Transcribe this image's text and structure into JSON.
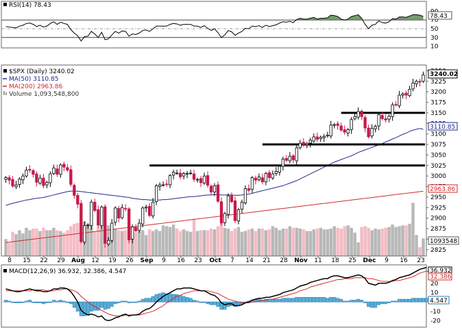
{
  "rsi": {
    "legend": "RSI(14) 78.43",
    "value_label": "78.43",
    "ticks": [
      "90",
      "70",
      "50",
      "30",
      "10"
    ],
    "tick_values": [
      90,
      70,
      50,
      30,
      10
    ],
    "levels": [
      70,
      50,
      30
    ],
    "ylim": [
      0,
      100
    ]
  },
  "price": {
    "legend": "$SPX (Daily) 3240.02",
    "legend_ma50": "MA(50) 3110.85",
    "legend_ma200": "MA(200) 2963.86",
    "legend_volume": "Volume 1,093,548,800",
    "last_label": "3240.02",
    "ma50_label": "3110.85",
    "ma200_label": "2963.86",
    "volume_label": "1093548",
    "ticks": [
      "3250",
      "3225",
      "3200",
      "3175",
      "3150",
      "3125",
      "3100",
      "3075",
      "3050",
      "3025",
      "3000",
      "2975",
      "2950",
      "2925",
      "2900",
      "2875",
      "2850",
      "2825"
    ],
    "tick_values": [
      3250,
      3225,
      3200,
      3175,
      3150,
      3125,
      3100,
      3075,
      3050,
      3025,
      3000,
      2975,
      2950,
      2925,
      2900,
      2875,
      2850,
      2825
    ],
    "ylim": [
      2810,
      3262
    ],
    "colors": {
      "up": "#000000",
      "down": "#c8184a",
      "ma50": "#1f2a8c",
      "ma200": "#d22727",
      "vol_up": "#b8b8b8",
      "vol_down": "#f4bcc4",
      "rsi_fill": "#5d8a55"
    },
    "resistance_levels": [
      3150,
      3075,
      3025
    ]
  },
  "xaxis": {
    "labels": [
      "8",
      "15",
      "22",
      "29",
      "Aug",
      "12",
      "19",
      "26",
      "Sep",
      "9",
      "16",
      "23",
      "Oct",
      "7",
      "14",
      "21",
      "28",
      "Nov",
      "11",
      "18",
      "25",
      "Dec",
      "9",
      "16",
      "23"
    ],
    "bold": [
      "Aug",
      "Sep",
      "Oct",
      "Nov",
      "Dec"
    ]
  },
  "macd": {
    "legend": "MACD(12,26,9) 36.932, 32.386, 4.547",
    "macd_label": "36.932",
    "signal_label": "32.386",
    "hist_label": "4.547",
    "ticks": [
      "30",
      "20",
      "10",
      "0",
      "-10",
      "-20"
    ],
    "tick_values": [
      30,
      20,
      10,
      0,
      -10,
      -20
    ],
    "ylim": [
      -27,
      39
    ]
  },
  "chart_data": {
    "type": "candlestick",
    "title": "$SPX (Daily) 3240.02",
    "series_names": [
      "$SPX",
      "MA(50)",
      "MA(200)",
      "Volume",
      "RSI(14)",
      "MACD(12,26,9)"
    ],
    "dates": [
      "Jul 3",
      "Jul 5",
      "Jul 8",
      "Jul 9",
      "Jul 10",
      "Jul 11",
      "Jul 12",
      "Jul 15",
      "Jul 16",
      "Jul 17",
      "Jul 18",
      "Jul 19",
      "Jul 22",
      "Jul 23",
      "Jul 24",
      "Jul 25",
      "Jul 26",
      "Jul 29",
      "Jul 30",
      "Jul 31",
      "Aug 1",
      "Aug 2",
      "Aug 5",
      "Aug 6",
      "Aug 7",
      "Aug 8",
      "Aug 9",
      "Aug 12",
      "Aug 13",
      "Aug 14",
      "Aug 15",
      "Aug 16",
      "Aug 19",
      "Aug 20",
      "Aug 21",
      "Aug 22",
      "Aug 23",
      "Aug 26",
      "Aug 27",
      "Aug 28",
      "Aug 29",
      "Aug 30",
      "Sep 3",
      "Sep 4",
      "Sep 5",
      "Sep 6",
      "Sep 9",
      "Sep 10",
      "Sep 11",
      "Sep 12",
      "Sep 13",
      "Sep 16",
      "Sep 17",
      "Sep 18",
      "Sep 19",
      "Sep 20",
      "Sep 23",
      "Sep 24",
      "Sep 25",
      "Sep 26",
      "Sep 27",
      "Sep 30",
      "Oct 1",
      "Oct 2",
      "Oct 3",
      "Oct 4",
      "Oct 7",
      "Oct 8",
      "Oct 9",
      "Oct 10",
      "Oct 11",
      "Oct 14",
      "Oct 15",
      "Oct 16",
      "Oct 17",
      "Oct 18",
      "Oct 21",
      "Oct 22",
      "Oct 23",
      "Oct 24",
      "Oct 25",
      "Oct 28",
      "Oct 29",
      "Oct 30",
      "Oct 31",
      "Nov 1",
      "Nov 4",
      "Nov 5",
      "Nov 6",
      "Nov 7",
      "Nov 8",
      "Nov 11",
      "Nov 12",
      "Nov 13",
      "Nov 14",
      "Nov 15",
      "Nov 18",
      "Nov 19",
      "Nov 20",
      "Nov 21",
      "Nov 22",
      "Nov 25",
      "Nov 26",
      "Nov 27",
      "Nov 29",
      "Dec 2",
      "Dec 3",
      "Dec 4",
      "Dec 5",
      "Dec 6",
      "Dec 9",
      "Dec 10",
      "Dec 11",
      "Dec 12",
      "Dec 13",
      "Dec 16",
      "Dec 17",
      "Dec 18",
      "Dec 19",
      "Dec 20",
      "Dec 23",
      "Dec 24",
      "Dec 26"
    ],
    "close": [
      2996,
      2990,
      2976,
      2979,
      2993,
      3000,
      3014,
      3014,
      3004,
      2985,
      2995,
      2977,
      2985,
      3005,
      3019,
      3004,
      3026,
      3021,
      3014,
      2980,
      2954,
      2933,
      2844,
      2882,
      2884,
      2938,
      2918,
      2883,
      2926,
      2840,
      2847,
      2888,
      2924,
      2900,
      2925,
      2922,
      2848,
      2879,
      2870,
      2888,
      2924,
      2926,
      2906,
      2938,
      2977,
      2979,
      2979,
      2980,
      3001,
      3009,
      3007,
      2998,
      3006,
      3006,
      3007,
      2992,
      2992,
      2984,
      3000,
      2978,
      2962,
      2977,
      2940,
      2888,
      2911,
      2953,
      2939,
      2894,
      2920,
      2938,
      2970,
      2966,
      2996,
      2990,
      2998,
      2986,
      3006,
      2996,
      3005,
      3011,
      3023,
      3040,
      3037,
      3047,
      3038,
      3067,
      3078,
      3075,
      3077,
      3085,
      3093,
      3087,
      3092,
      3094,
      3097,
      3121,
      3122,
      3120,
      3109,
      3104,
      3110,
      3134,
      3141,
      3153,
      3141,
      3114,
      3093,
      3113,
      3118,
      3146,
      3136,
      3133,
      3142,
      3169,
      3169,
      3192,
      3195,
      3192,
      3206,
      3221,
      3225,
      3223,
      3240
    ],
    "ohlc_note": "close values in index points; candles drawn from open = previous close",
    "ma50": [
      2930,
      2933,
      2935,
      2937,
      2939,
      2941,
      2943,
      2944,
      2946,
      2947,
      2948,
      2949,
      2951,
      2953,
      2955,
      2957,
      2959,
      2961,
      2963,
      2964,
      2964,
      2964,
      2963,
      2962,
      2961,
      2960,
      2959,
      2958,
      2957,
      2956,
      2955,
      2954,
      2953,
      2952,
      2951,
      2950,
      2949,
      2947,
      2946,
      2945,
      2944,
      2944,
      2943,
      2943,
      2943,
      2943,
      2944,
      2944,
      2945,
      2946,
      2947,
      2948,
      2949,
      2950,
      2951,
      2951,
      2952,
      2953,
      2954,
      2955,
      2955,
      2956,
      2956,
      2955,
      2955,
      2955,
      2955,
      2954,
      2954,
      2955,
      2956,
      2957,
      2959,
      2961,
      2963,
      2965,
      2967,
      2969,
      2971,
      2973,
      2975,
      2977,
      2980,
      2983,
      2986,
      2989,
      2993,
      2997,
      3001,
      3005,
      3009,
      3013,
      3017,
      3021,
      3025,
      3029,
      3033,
      3036,
      3039,
      3042,
      3045,
      3048,
      3052,
      3056,
      3059,
      3062,
      3065,
      3068,
      3071,
      3074,
      3077,
      3081,
      3084,
      3088,
      3091,
      3095,
      3099,
      3102,
      3106,
      3109,
      3111,
      3113,
      3111
    ],
    "ma200_start": 2842,
    "ma200_end": 2963.86,
    "volume_millions": [
      1050,
      820,
      1500,
      1350,
      1600,
      1400,
      1750,
      1600,
      1700,
      1700,
      1550,
      1750,
      1600,
      1600,
      1750,
      1600,
      1550,
      1450,
      1600,
      1850,
      2000,
      2050,
      2600,
      2150,
      1900,
      1900,
      1500,
      1800,
      2050,
      2400,
      1900,
      1700,
      1700,
      1600,
      1550,
      1600,
      2100,
      1650,
      1450,
      1550,
      1600,
      1300,
      1650,
      1550,
      1650,
      1550,
      1900,
      1850,
      1800,
      1950,
      1700,
      1550,
      1650,
      1550,
      1500,
      2300,
      1550,
      1600,
      1600,
      1600,
      1700,
      1650,
      1850,
      2000,
      1750,
      1700,
      1550,
      1700,
      1800,
      1500,
      1550,
      1650,
      1700,
      1550,
      1700,
      1700,
      1600,
      1650,
      1850,
      1750,
      1600,
      1700,
      1700,
      1850,
      1750,
      1750,
      1700,
      1650,
      1550,
      1550,
      1650,
      1700,
      1750,
      1650,
      1650,
      1700,
      1850,
      1750,
      1700,
      1850,
      1900,
      1750,
      1450,
      850,
      1800,
      1850,
      1750,
      1600,
      1700,
      1650,
      1700,
      1750,
      1800,
      1950,
      1800,
      1850,
      1900,
      1900,
      2000,
      3300,
      1300,
      550,
      1093
    ],
    "rsi": [
      55,
      54,
      53,
      52,
      56,
      58,
      62,
      63,
      60,
      55,
      58,
      54,
      56,
      62,
      66,
      60,
      65,
      62,
      60,
      48,
      40,
      34,
      22,
      32,
      33,
      44,
      38,
      30,
      42,
      25,
      27,
      36,
      44,
      40,
      45,
      44,
      33,
      38,
      37,
      40,
      46,
      47,
      44,
      50,
      56,
      56,
      56,
      56,
      60,
      62,
      61,
      58,
      60,
      60,
      60,
      56,
      56,
      53,
      57,
      51,
      46,
      50,
      41,
      30,
      36,
      46,
      43,
      35,
      40,
      44,
      51,
      50,
      56,
      55,
      57,
      53,
      58,
      55,
      57,
      59,
      63,
      66,
      65,
      67,
      64,
      71,
      74,
      72,
      72,
      74,
      76,
      72,
      74,
      74,
      75,
      81,
      80,
      78,
      72,
      70,
      72,
      78,
      80,
      82,
      74,
      60,
      50,
      58,
      60,
      68,
      64,
      63,
      66,
      73,
      72,
      77,
      77,
      76,
      79,
      82,
      82,
      81,
      78
    ],
    "macd": [
      14,
      13,
      12,
      11,
      11,
      12,
      13,
      14,
      13,
      12,
      12,
      11,
      11,
      12,
      14,
      14,
      15,
      15,
      14,
      11,
      6,
      0,
      -9,
      -12,
      -14,
      -13,
      -14,
      -16,
      -15,
      -19,
      -20,
      -19,
      -17,
      -16,
      -14,
      -13,
      -15,
      -14,
      -14,
      -13,
      -10,
      -8,
      -7,
      -4,
      0,
      3,
      6,
      8,
      10,
      12,
      14,
      14,
      15,
      15,
      15,
      14,
      13,
      12,
      12,
      10,
      8,
      7,
      4,
      -1,
      -3,
      -2,
      -2,
      -4,
      -4,
      -3,
      -1,
      0,
      2,
      3,
      4,
      4,
      5,
      5,
      6,
      7,
      8,
      10,
      11,
      12,
      13,
      15,
      17,
      18,
      19,
      21,
      22,
      23,
      24,
      25,
      25,
      27,
      28,
      28,
      27,
      26,
      26,
      27,
      28,
      29,
      28,
      25,
      20,
      19,
      18,
      20,
      20,
      20,
      21,
      23,
      24,
      26,
      27,
      28,
      29,
      31,
      33,
      35,
      36,
      37
    ],
    "macd_signal": [
      12,
      12,
      12,
      12,
      12,
      12,
      12,
      12,
      13,
      13,
      13,
      13,
      12,
      12,
      12,
      13,
      13,
      14,
      14,
      13,
      12,
      10,
      6,
      3,
      0,
      -3,
      -5,
      -7,
      -9,
      -11,
      -13,
      -14,
      -15,
      -15,
      -15,
      -14,
      -14,
      -14,
      -14,
      -14,
      -13,
      -12,
      -11,
      -10,
      -8,
      -6,
      -4,
      -1,
      1,
      4,
      6,
      7,
      9,
      10,
      11,
      12,
      12,
      12,
      12,
      12,
      11,
      10,
      9,
      7,
      5,
      3,
      2,
      1,
      0,
      -1,
      -1,
      -1,
      0,
      0,
      1,
      2,
      2,
      3,
      3,
      4,
      5,
      6,
      7,
      8,
      9,
      10,
      12,
      13,
      14,
      16,
      17,
      18,
      19,
      20,
      21,
      22,
      23,
      24,
      24,
      25,
      25,
      25,
      26,
      26,
      26,
      26,
      25,
      25,
      24,
      23,
      22,
      22,
      22,
      22,
      23,
      23,
      24,
      25,
      26,
      27,
      29,
      31,
      32,
      33,
      32
    ]
  }
}
